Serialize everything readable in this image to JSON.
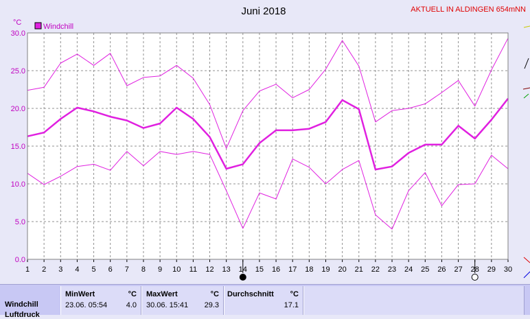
{
  "header": {
    "title": "Juni 2018",
    "station": "AKTUELL IN ALDINGEN 654mNN",
    "unit": "°C"
  },
  "colors": {
    "line": "#e020e0",
    "label": "#c000c0",
    "grid": "#909090",
    "plot_bg": "#ffffff",
    "page_bg": "#e8e8f8"
  },
  "chart_data": {
    "type": "line",
    "x": [
      1,
      2,
      3,
      4,
      5,
      6,
      7,
      8,
      9,
      10,
      11,
      12,
      13,
      14,
      15,
      16,
      17,
      18,
      19,
      20,
      21,
      22,
      23,
      24,
      25,
      26,
      27,
      28,
      29,
      30
    ],
    "xticks": [
      "1",
      "2",
      "3",
      "4",
      "5",
      "6",
      "7",
      "8",
      "9",
      "10",
      "11",
      "12",
      "13",
      "14",
      "15",
      "16",
      "17",
      "18",
      "19",
      "20",
      "21",
      "22",
      "23",
      "24",
      "25",
      "26",
      "27",
      "28",
      "29",
      "30"
    ],
    "xlim": [
      1,
      30
    ],
    "ylim": [
      0,
      30
    ],
    "yticks": [
      "0.0",
      "5.0",
      "10.0",
      "15.0",
      "20.0",
      "25.0",
      "30.0"
    ],
    "legend": "Windchill",
    "legend_position": "top-left",
    "grid": true,
    "series": [
      {
        "role": "max",
        "values": [
          22.4,
          22.8,
          26.0,
          27.2,
          25.7,
          27.3,
          23.0,
          24.1,
          24.3,
          25.7,
          24.0,
          20.5,
          14.7,
          19.7,
          22.3,
          23.2,
          21.4,
          22.5,
          25.2,
          29.0,
          25.6,
          18.2,
          19.7,
          20.0,
          20.6,
          22.1,
          23.7,
          20.3,
          25.1,
          29.3
        ]
      },
      {
        "role": "avg",
        "values": [
          16.3,
          16.8,
          18.6,
          20.1,
          19.6,
          18.9,
          18.4,
          17.4,
          18.0,
          20.1,
          18.6,
          16.2,
          12.0,
          12.6,
          15.4,
          17.1,
          17.1,
          17.3,
          18.2,
          21.1,
          19.9,
          11.9,
          12.3,
          14.1,
          15.2,
          15.2,
          17.7,
          16.0,
          18.5,
          21.3
        ]
      },
      {
        "role": "min",
        "values": [
          11.4,
          9.9,
          11.0,
          12.3,
          12.6,
          11.8,
          14.3,
          12.4,
          14.3,
          13.9,
          14.3,
          13.9,
          9.1,
          4.1,
          8.8,
          8.0,
          13.3,
          12.2,
          10.0,
          11.9,
          13.1,
          5.9,
          4.0,
          9.1,
          11.5,
          7.1,
          9.9,
          10.0,
          13.8,
          12.0
        ]
      }
    ],
    "markers": [
      {
        "x": 14,
        "symbol": "filled-circle"
      },
      {
        "x": 28,
        "symbol": "open-circle"
      }
    ]
  },
  "stats": {
    "row_label": "Windchill",
    "min": {
      "header": "MinWert",
      "unit": "°C",
      "date": "23.06.  05:54",
      "value": "4.0"
    },
    "max": {
      "header": "MaxWert",
      "unit": "°C",
      "date": "30.06.  15:41",
      "value": "29.3"
    },
    "avg": {
      "header": "Durchschnitt",
      "unit": "°C",
      "value": "17.1"
    }
  }
}
